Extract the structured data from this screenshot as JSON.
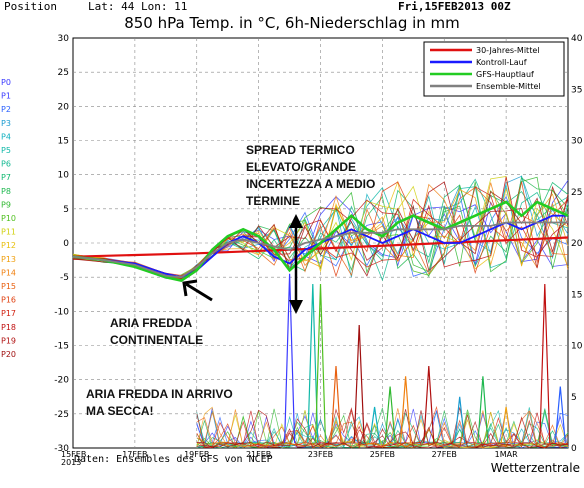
{
  "header": {
    "position_label": "Position",
    "lat_lon": "Lat: 44 Lon: 11",
    "date": "Fri,15FEB2013 00Z",
    "title": "850 hPa Temp. in °C, 6h-Niederschlag in mm"
  },
  "footer": {
    "source": "Daten: Ensembles des GFS von NCEP",
    "brand": "Wetterzentrale"
  },
  "legend": [
    {
      "name": "30-Jahres-Mittel",
      "color": "#e01010"
    },
    {
      "name": "Kontroll-Lauf",
      "color": "#1a1aff"
    },
    {
      "name": "GFS-Hauptlauf",
      "color": "#22cc22"
    },
    {
      "name": "Ensemble-Mittel",
      "color": "#808080"
    }
  ],
  "member_labels": [
    {
      "label": "P0",
      "color": "#3a3aff"
    },
    {
      "label": "P1",
      "color": "#3a3aff"
    },
    {
      "label": "P2",
      "color": "#2a60ff"
    },
    {
      "label": "P3",
      "color": "#1a9ad0"
    },
    {
      "label": "P4",
      "color": "#10b0c0"
    },
    {
      "label": "P5",
      "color": "#10b8a8"
    },
    {
      "label": "P6",
      "color": "#10b890"
    },
    {
      "label": "P7",
      "color": "#10b870"
    },
    {
      "label": "P8",
      "color": "#20b850"
    },
    {
      "label": "P9",
      "color": "#30b830"
    },
    {
      "label": "P10",
      "color": "#50c020"
    },
    {
      "label": "P11",
      "color": "#d0d010"
    },
    {
      "label": "P12",
      "color": "#e8c010"
    },
    {
      "label": "P13",
      "color": "#f0a010"
    },
    {
      "label": "P14",
      "color": "#f08010"
    },
    {
      "label": "P15",
      "color": "#e86010"
    },
    {
      "label": "P16",
      "color": "#e04010"
    },
    {
      "label": "P17",
      "color": "#d02010"
    },
    {
      "label": "P18",
      "color": "#c01010"
    },
    {
      "label": "P19",
      "color": "#b01010"
    },
    {
      "label": "P20",
      "color": "#a01010"
    }
  ],
  "annotations": {
    "spread": "SPREAD TERMICO ELEVATO/GRANDE INCERTEZZA A MEDIO TERMINE",
    "continental": "ARIA FREDDA CONTINENTALE",
    "dry": "ARIA FREDDA IN ARRIVO MA SECCA!"
  },
  "chart_data": {
    "type": "line",
    "title": "850 hPa Temp. in °C, 6h-Niederschlag in mm",
    "xlabel": "",
    "ylabel": "",
    "x_ticks": [
      "15FEB 2013",
      "17FEB",
      "19FEB",
      "21FEB",
      "23FEB",
      "25FEB",
      "27FEB",
      "1MAR"
    ],
    "x_range_days": [
      0,
      16
    ],
    "left_axis": {
      "label": "°C",
      "ylim": [
        -30,
        30
      ],
      "ticks": [
        30,
        25,
        20,
        15,
        10,
        5,
        0,
        -5,
        -10,
        -15,
        -20,
        -25,
        -30
      ]
    },
    "right_axis": {
      "label": "mm",
      "ylim": [
        0,
        40
      ],
      "ticks": [
        40,
        35,
        30,
        25,
        20,
        15,
        10,
        5,
        0
      ]
    },
    "grid": "dashed",
    "legend_position": "top-right",
    "series": [
      {
        "name": "30-Jahres-Mittel",
        "color": "#e01010",
        "x": [
          0,
          4,
          8,
          12,
          16
        ],
        "y": [
          -2.0,
          -1.5,
          -0.8,
          0.0,
          0.8
        ]
      },
      {
        "name": "Kontroll-Lauf",
        "color": "#1a1aff",
        "x": [
          0,
          1,
          2,
          3,
          3.5,
          4,
          4.5,
          5,
          5.5,
          6,
          6.5,
          7,
          7.5,
          8,
          8.5,
          9,
          9.5,
          10,
          10.5,
          11,
          11.5,
          12,
          12.5,
          13,
          13.5,
          14,
          14.5,
          15,
          15.5,
          16
        ],
        "y": [
          -2,
          -2.5,
          -3,
          -4.5,
          -5,
          -4,
          -2,
          0,
          1,
          0,
          -2,
          -3,
          -1,
          0,
          1,
          2,
          1,
          0,
          1,
          2,
          1,
          0,
          0,
          1,
          2,
          3,
          2,
          3,
          4,
          4
        ]
      },
      {
        "name": "GFS-Hauptlauf",
        "color": "#22cc22",
        "x": [
          0,
          1,
          2,
          3,
          3.5,
          4,
          4.5,
          5,
          5.5,
          6,
          6.5,
          7,
          7.5,
          8,
          8.5,
          9,
          9.5,
          10,
          10.5,
          11,
          11.5,
          12,
          12.5,
          13,
          13.5,
          14,
          14.5,
          15,
          15.5,
          16
        ],
        "y": [
          -2,
          -2.5,
          -3.5,
          -5,
          -5.5,
          -4,
          -1,
          1,
          2,
          1,
          -1,
          -4,
          -2,
          0,
          2,
          4,
          2,
          1,
          3,
          4,
          3,
          2,
          3,
          4,
          5,
          6,
          4,
          6,
          5,
          4
        ]
      },
      {
        "name": "Ensemble-Mittel",
        "color": "#808080",
        "x": [
          0,
          1,
          2,
          3,
          3.5,
          4,
          4.5,
          5,
          5.5,
          6,
          6.5,
          7,
          7.5,
          8,
          8.5,
          9,
          9.5,
          10,
          10.5,
          11,
          11.5,
          12,
          12.5,
          13,
          13.5,
          14,
          14.5,
          15,
          15.5,
          16
        ],
        "y": [
          -2,
          -2.5,
          -3.2,
          -4.8,
          -5,
          -3.5,
          -1.5,
          0,
          0.5,
          0,
          -0.5,
          -1,
          0,
          0.5,
          1,
          1.5,
          1.5,
          1.5,
          2,
          2,
          2,
          2,
          2.5,
          2.5,
          2.5,
          3,
          3,
          3,
          3,
          3
        ]
      }
    ],
    "precipitation_peaks_mm": [
      {
        "day": 7.0,
        "mm": 17
      },
      {
        "day": 7.75,
        "mm": 16
      },
      {
        "day": 8.0,
        "mm": 16
      },
      {
        "day": 8.5,
        "mm": 8
      },
      {
        "day": 9.25,
        "mm": 12
      },
      {
        "day": 9.75,
        "mm": 4
      },
      {
        "day": 10.25,
        "mm": 6
      },
      {
        "day": 10.75,
        "mm": 7
      },
      {
        "day": 11.5,
        "mm": 8
      },
      {
        "day": 12.5,
        "mm": 5
      },
      {
        "day": 13.25,
        "mm": 7
      },
      {
        "day": 14.0,
        "mm": 4
      },
      {
        "day": 15.25,
        "mm": 16
      },
      {
        "day": 15.75,
        "mm": 6
      }
    ]
  }
}
